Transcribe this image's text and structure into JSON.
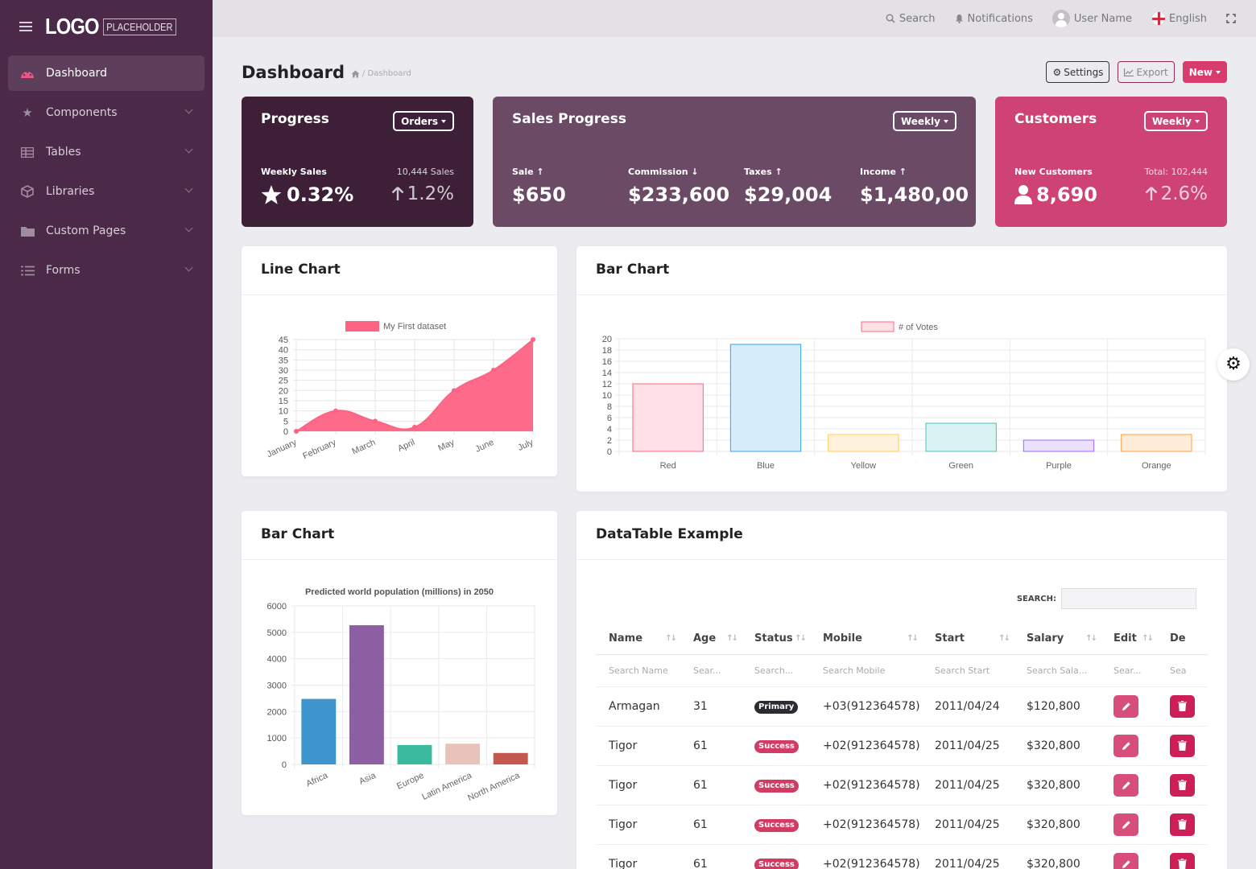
{
  "logo": {
    "main": "LOGO",
    "sub": "PLACEHOLDER"
  },
  "sidebar": {
    "items": [
      {
        "label": "Dashboard",
        "icon": "palette-icon",
        "active": true
      },
      {
        "label": "Components",
        "icon": "star-icon"
      },
      {
        "label": "Tables",
        "icon": "table-icon"
      },
      {
        "label": "Libraries",
        "icon": "box-icon"
      },
      {
        "label": "Custom Pages",
        "icon": "folder-icon"
      },
      {
        "label": "Forms",
        "icon": "list-icon"
      }
    ]
  },
  "topbar": {
    "search": "Search",
    "notifications": "Notifications",
    "user": "User Name",
    "language": "English"
  },
  "header": {
    "title": "Dashboard",
    "breadcrumb": "/ Dashboard",
    "settings": "Settings",
    "export": "Export",
    "new": "New"
  },
  "stats": {
    "progress": {
      "title": "Progress",
      "button": "Orders",
      "label": "Weekly Sales",
      "right_label": "10,444 Sales",
      "value": "0.32%",
      "change": "1.2%",
      "bg": "#3d2038"
    },
    "sales": {
      "title": "Sales Progress",
      "button": "Weekly",
      "bg": "#6b4a66",
      "items": [
        {
          "label": "Sale",
          "dir": "up",
          "value": "$650"
        },
        {
          "label": "Commission",
          "dir": "down",
          "value": "$233,600"
        },
        {
          "label": "Taxes",
          "dir": "up",
          "value": "$29,004"
        },
        {
          "label": "Income",
          "dir": "up",
          "value": "$1,480,00"
        }
      ]
    },
    "customers": {
      "title": "Customers",
      "button": "Weekly",
      "label": "New Customers",
      "right_label": "Total: 102,444",
      "value": "8,690",
      "change": "2.6%",
      "bg": "#cf4374"
    }
  },
  "cards": {
    "line": "Line Chart",
    "bar": "Bar Chart",
    "bar2": "Bar Chart",
    "table": "DataTable Example"
  },
  "chart_data": [
    {
      "type": "area",
      "legend": "My First dataset",
      "color": "#fe6384",
      "x": [
        "January",
        "February",
        "March",
        "April",
        "May",
        "June",
        "July"
      ],
      "values": [
        0,
        10,
        5,
        2,
        20,
        30,
        45
      ],
      "ylim": [
        0,
        45
      ],
      "yticks": [
        0,
        5,
        10,
        15,
        20,
        25,
        30,
        35,
        40,
        45
      ]
    },
    {
      "type": "bar",
      "legend": "# of Votes",
      "categories": [
        "Red",
        "Blue",
        "Yellow",
        "Green",
        "Purple",
        "Orange"
      ],
      "values": [
        12,
        19,
        3,
        5,
        2,
        3
      ],
      "ylim": [
        0,
        20
      ],
      "yticks": [
        0,
        2,
        4,
        6,
        8,
        10,
        12,
        14,
        16,
        18,
        20
      ],
      "fills": [
        "#ffe0e6",
        "#d7ecfb",
        "#fff1dc",
        "#dbf2f2",
        "#ebe0ff",
        "#ffecd9"
      ],
      "strokes": [
        "#ff6384",
        "#36a2eb",
        "#ffce56",
        "#4bc0c0",
        "#9966ff",
        "#ff9f40"
      ]
    },
    {
      "type": "bar",
      "title": "Predicted world population (millions) in 2050",
      "categories": [
        "Africa",
        "Asia",
        "Europe",
        "Latin America",
        "North America"
      ],
      "values": [
        2478,
        5267,
        734,
        784,
        433
      ],
      "ylim": [
        0,
        6000
      ],
      "yticks": [
        0,
        1000,
        2000,
        3000,
        4000,
        5000,
        6000
      ],
      "colors": [
        "#3e95cd",
        "#8e5ea2",
        "#3cba9f",
        "#e8c3b9",
        "#c45850"
      ]
    }
  ],
  "datatable": {
    "search_label": "SEARCH:",
    "columns": [
      "Name",
      "Age",
      "Status",
      "Mobile",
      "Start",
      "Salary",
      "Edit",
      "De"
    ],
    "filters": [
      "Search Name",
      "Sear...",
      "Search...",
      "Search Mobile",
      "Search Start",
      "Search Sala...",
      "Sear...",
      "Sea"
    ],
    "rows": [
      {
        "name": "Armagan",
        "age": "31",
        "status": "Primary",
        "mobile": "+03(912364578)",
        "start": "2011/04/24",
        "salary": "$120,800"
      },
      {
        "name": "Tigor",
        "age": "61",
        "status": "Success",
        "mobile": "+02(912364578)",
        "start": "2011/04/25",
        "salary": "$320,800"
      },
      {
        "name": "Tigor",
        "age": "61",
        "status": "Success",
        "mobile": "+02(912364578)",
        "start": "2011/04/25",
        "salary": "$320,800"
      },
      {
        "name": "Tigor",
        "age": "61",
        "status": "Success",
        "mobile": "+02(912364578)",
        "start": "2011/04/25",
        "salary": "$320,800"
      },
      {
        "name": "Tigor",
        "age": "61",
        "status": "Success",
        "mobile": "+02(912364578)",
        "start": "2011/04/25",
        "salary": "$320,800"
      }
    ]
  }
}
